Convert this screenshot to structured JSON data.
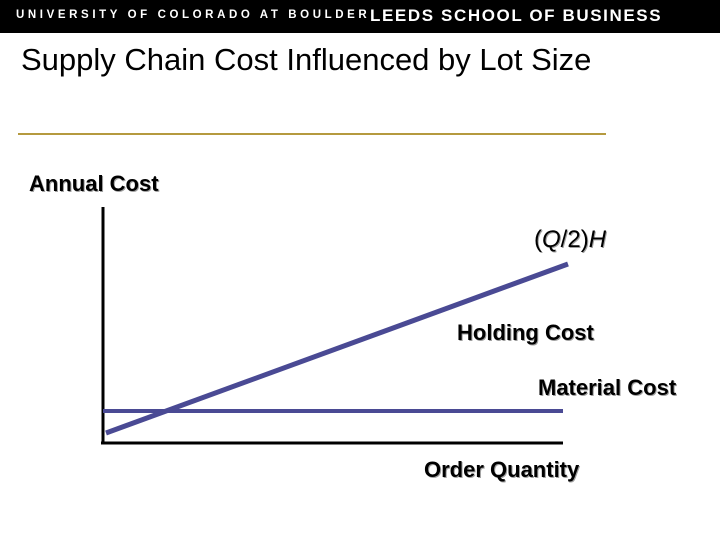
{
  "header": {
    "university": "UNIVERSITY OF COLORADO AT BOULDER",
    "school": "LEEDS SCHOOL OF BUSINESS"
  },
  "slide": {
    "title": "Supply Chain Cost Influenced by Lot Size"
  },
  "diagram": {
    "y_axis_label": "Annual Cost",
    "x_axis_label": "Order Quantity",
    "formula": {
      "open": "(",
      "q": "Q",
      "mid": "/2)",
      "h": "H"
    },
    "holding_cost_label": "Holding Cost",
    "material_cost_label": "Material Cost",
    "colors": {
      "axis": "#000000",
      "cost_lines": "#4a4a94",
      "title_rule": "#b59a3f"
    }
  }
}
